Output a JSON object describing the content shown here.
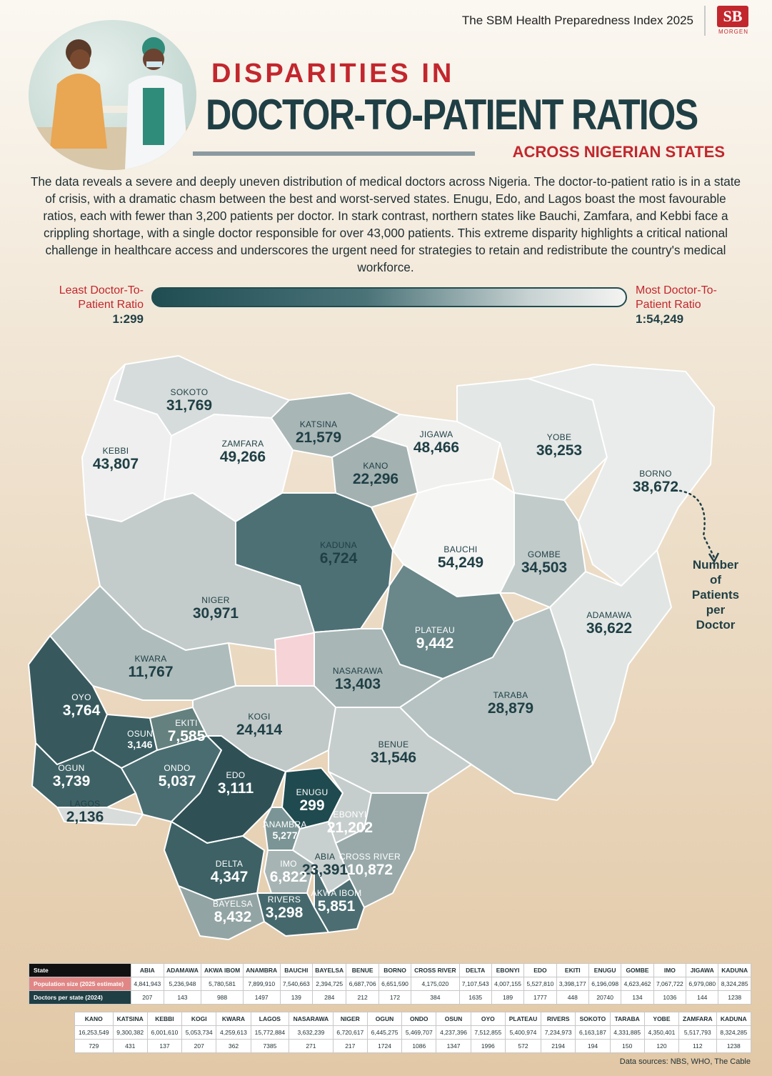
{
  "header": {
    "brand_title": "The SBM Health Preparedness Index 2025",
    "logo_text": "SB",
    "logo_sub": "MORGEN"
  },
  "title": {
    "line1": "DISPARITIES IN",
    "line2": "DOCTOR-TO-PATIENT RATIOS",
    "line3": "ACROSS NIGERIAN STATES"
  },
  "intro": "The data reveals a severe and deeply uneven distribution of medical doctors across Nigeria. The doctor-to-patient ratio is in a state of crisis, with a dramatic chasm between the best and worst-served states. Enugu, Edo, and Lagos boast the most favourable ratios, each with fewer than 3,200 patients per doctor. In stark contrast, northern states like Bauchi, Zamfara, and Kebbi face a crippling shortage, with a single doctor responsible for over 43,000 patients. This extreme disparity highlights a critical national challenge in healthcare access and underscores the urgent need for strategies to retain and redistribute the country's medical workforce.",
  "scale": {
    "left_label_1": "Least Doctor-To-",
    "left_label_2": "Patient Ratio",
    "left_value": "1:299",
    "right_label_1": "Most Doctor-To-",
    "right_label_2": "Patient Ratio",
    "right_value": "1:54,249",
    "colors": [
      "#1f4d52",
      "#f4f4f2"
    ]
  },
  "legend_note": "Number of Patients per Doctor",
  "map": {
    "fcr_color": "#f6d3d6",
    "states": [
      {
        "name": "SOKOTO",
        "value": "31,769"
      },
      {
        "name": "KEBBI",
        "value": "43,807"
      },
      {
        "name": "ZAMFARA",
        "value": "49,266"
      },
      {
        "name": "KATSINA",
        "value": "21,579"
      },
      {
        "name": "KANO",
        "value": "22,296"
      },
      {
        "name": "JIGAWA",
        "value": "48,466"
      },
      {
        "name": "YOBE",
        "value": "36,253"
      },
      {
        "name": "BORNO",
        "value": "38,672"
      },
      {
        "name": "KADUNA",
        "value": "6,724"
      },
      {
        "name": "BAUCHI",
        "value": "54,249"
      },
      {
        "name": "GOMBE",
        "value": "34,503"
      },
      {
        "name": "NIGER",
        "value": "30,971"
      },
      {
        "name": "ADAMAWA",
        "value": "36,622"
      },
      {
        "name": "PLATEAU",
        "value": "9,442"
      },
      {
        "name": "KWARA",
        "value": "11,767"
      },
      {
        "name": "NASARAWA",
        "value": "13,403"
      },
      {
        "name": "TARABA",
        "value": "28,879"
      },
      {
        "name": "OYO",
        "value": "3,764"
      },
      {
        "name": "OSUN",
        "value": "3,146"
      },
      {
        "name": "EKITI",
        "value": "7,585"
      },
      {
        "name": "KOGI",
        "value": "24,414"
      },
      {
        "name": "BENUE",
        "value": "31,546"
      },
      {
        "name": "OGUN",
        "value": "3,739"
      },
      {
        "name": "ONDO",
        "value": "5,037"
      },
      {
        "name": "EDO",
        "value": "3,111"
      },
      {
        "name": "ENUGU",
        "value": "299"
      },
      {
        "name": "LAGOS",
        "value": "2,136"
      },
      {
        "name": "EBONYI",
        "value": "21,202"
      },
      {
        "name": "ANAMBRA",
        "value": "5,277"
      },
      {
        "name": "ABIA",
        "value": "23,391"
      },
      {
        "name": "CROSS RIVER",
        "value": "10,872"
      },
      {
        "name": "DELTA",
        "value": "4,347"
      },
      {
        "name": "IMO",
        "value": "6,822"
      },
      {
        "name": "AKWA IBOM",
        "value": "5,851"
      },
      {
        "name": "BAYELSA",
        "value": "8,432"
      },
      {
        "name": "RIVERS",
        "value": "3,298"
      }
    ]
  },
  "table1": {
    "row_labels": [
      "State",
      "Population size (2025 estimate)",
      "Doctors per state (2024)"
    ],
    "states": [
      "ABIA",
      "ADAMAWA",
      "AKWA IBOM",
      "ANAMBRA",
      "BAUCHI",
      "BAYELSA",
      "BENUE",
      "BORNO",
      "CROSS RIVER",
      "DELTA",
      "EBONYI",
      "EDO",
      "EKITI",
      "ENUGU",
      "GOMBE",
      "IMO",
      "JIGAWA",
      "KADUNA"
    ],
    "population": [
      "4,841,943",
      "5,236,948",
      "5,780,581",
      "7,899,910",
      "7,540,663",
      "2,394,725",
      "6,687,706",
      "6,651,590",
      "4,175,020",
      "7,107,543",
      "4,007,155",
      "5,527,810",
      "3,398,177",
      "6,196,098",
      "4,623,462",
      "7,067,722",
      "6,979,080",
      "8,324,285"
    ],
    "doctors": [
      "207",
      "143",
      "988",
      "1497",
      "139",
      "284",
      "212",
      "172",
      "384",
      "1635",
      "189",
      "1777",
      "448",
      "20740",
      "134",
      "1036",
      "144",
      "1238"
    ]
  },
  "table2": {
    "states": [
      "KANO",
      "KATSINA",
      "KEBBI",
      "KOGI",
      "KWARA",
      "LAGOS",
      "NASARAWA",
      "NIGER",
      "OGUN",
      "ONDO",
      "OSUN",
      "OYO",
      "PLATEAU",
      "RIVERS",
      "SOKOTO",
      "TARABA",
      "YOBE",
      "ZAMFARA",
      "KADUNA"
    ],
    "population": [
      "16,253,549",
      "9,300,382",
      "6,001,610",
      "5,053,734",
      "4,259,613",
      "15,772,884",
      "3,632,239",
      "6,720,617",
      "6,445,275",
      "5,469,707",
      "4,237,396",
      "7,512,855",
      "5,400,974",
      "7,234,973",
      "6,163,187",
      "4,331,885",
      "4,350,401",
      "5,517,793",
      "8,324,285"
    ],
    "doctors": [
      "729",
      "431",
      "137",
      "207",
      "362",
      "7385",
      "271",
      "217",
      "1724",
      "1086",
      "1347",
      "1996",
      "572",
      "2194",
      "194",
      "150",
      "120",
      "112",
      "1238"
    ]
  },
  "sources": "Data sources: NBS,  WHO, The Cable"
}
